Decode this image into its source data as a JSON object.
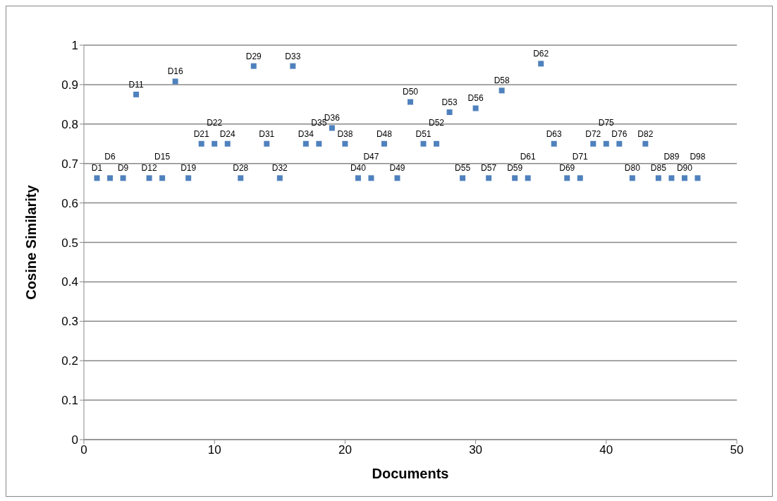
{
  "chart_data": {
    "type": "scatter",
    "xlabel": "Documents",
    "ylabel": "Cosine Similarity",
    "marker": "square",
    "grid": "y",
    "xlim": [
      0,
      50
    ],
    "xticks": [
      0,
      10,
      20,
      30,
      40,
      50
    ],
    "ylim": [
      0,
      1
    ],
    "yticks": [
      0,
      0.1,
      0.2,
      0.3,
      0.4,
      0.5,
      0.6,
      0.7,
      0.8,
      0.9,
      1
    ],
    "x": [
      1,
      2,
      3,
      4,
      5,
      6,
      7,
      8,
      9,
      10,
      11,
      12,
      13,
      14,
      15,
      16,
      17,
      18,
      19,
      20,
      21,
      22,
      23,
      24,
      25,
      26,
      27,
      28,
      29,
      30,
      31,
      32,
      33,
      34,
      35,
      36,
      37,
      38,
      39,
      40,
      41,
      42,
      43,
      44,
      45,
      46,
      47
    ],
    "series": [
      {
        "color": "#4f81bd",
        "values": [
          0.663,
          0.663,
          0.663,
          0.875,
          0.663,
          0.663,
          0.908,
          0.663,
          0.75,
          0.75,
          0.75,
          0.663,
          0.947,
          0.75,
          0.663,
          0.947,
          0.75,
          0.75,
          0.79,
          0.75,
          0.663,
          0.663,
          0.75,
          0.663,
          0.856,
          0.75,
          0.75,
          0.83,
          0.663,
          0.84,
          0.663,
          0.885,
          0.663,
          0.663,
          0.953,
          0.75,
          0.663,
          0.663,
          0.75,
          0.75,
          0.75,
          0.663,
          0.75,
          0.663,
          0.663,
          0.663,
          0.663
        ]
      }
    ],
    "annotations": [
      {
        "text": "D1",
        "x": 1,
        "y": 0.663
      },
      {
        "text": "D6",
        "x": 2,
        "y": 0.663
      },
      {
        "text": "D9",
        "x": 3,
        "y": 0.663
      },
      {
        "text": "D11",
        "x": 4,
        "y": 0.875
      },
      {
        "text": "D12",
        "x": 5,
        "y": 0.663
      },
      {
        "text": "D15",
        "x": 6,
        "y": 0.663
      },
      {
        "text": "D16",
        "x": 7,
        "y": 0.908
      },
      {
        "text": "D19",
        "x": 8,
        "y": 0.663
      },
      {
        "text": "D21",
        "x": 9,
        "y": 0.75
      },
      {
        "text": "D22",
        "x": 10,
        "y": 0.75
      },
      {
        "text": "D24",
        "x": 11,
        "y": 0.75
      },
      {
        "text": "D28",
        "x": 12,
        "y": 0.663
      },
      {
        "text": "D29",
        "x": 13,
        "y": 0.947
      },
      {
        "text": "D31",
        "x": 14,
        "y": 0.75
      },
      {
        "text": "D32",
        "x": 15,
        "y": 0.663
      },
      {
        "text": "D33",
        "x": 16,
        "y": 0.947
      },
      {
        "text": "D34",
        "x": 17,
        "y": 0.75
      },
      {
        "text": "D35",
        "x": 18,
        "y": 0.75
      },
      {
        "text": "D36",
        "x": 19,
        "y": 0.79
      },
      {
        "text": "D38",
        "x": 20,
        "y": 0.75
      },
      {
        "text": "D40",
        "x": 21,
        "y": 0.663
      },
      {
        "text": "D47",
        "x": 22,
        "y": 0.663
      },
      {
        "text": "D48",
        "x": 23,
        "y": 0.75
      },
      {
        "text": "D49",
        "x": 24,
        "y": 0.663
      },
      {
        "text": "D50",
        "x": 25,
        "y": 0.856
      },
      {
        "text": "D51",
        "x": 26,
        "y": 0.75
      },
      {
        "text": "D52",
        "x": 27,
        "y": 0.75
      },
      {
        "text": "D53",
        "x": 28,
        "y": 0.83
      },
      {
        "text": "D55",
        "x": 29,
        "y": 0.663
      },
      {
        "text": "D56",
        "x": 30,
        "y": 0.84
      },
      {
        "text": "D57",
        "x": 31,
        "y": 0.663
      },
      {
        "text": "D58",
        "x": 32,
        "y": 0.885
      },
      {
        "text": "D59",
        "x": 33,
        "y": 0.663
      },
      {
        "text": "D61",
        "x": 34,
        "y": 0.663
      },
      {
        "text": "D62",
        "x": 35,
        "y": 0.953
      },
      {
        "text": "D63",
        "x": 36,
        "y": 0.75
      },
      {
        "text": "D69",
        "x": 37,
        "y": 0.663
      },
      {
        "text": "D71",
        "x": 38,
        "y": 0.663
      },
      {
        "text": "D72",
        "x": 39,
        "y": 0.75
      },
      {
        "text": "D75",
        "x": 40,
        "y": 0.75
      },
      {
        "text": "D76",
        "x": 41,
        "y": 0.75
      },
      {
        "text": "D80",
        "x": 42,
        "y": 0.663
      },
      {
        "text": "D82",
        "x": 43,
        "y": 0.75
      },
      {
        "text": "D85",
        "x": 44,
        "y": 0.663
      },
      {
        "text": "D89",
        "x": 45,
        "y": 0.663
      },
      {
        "text": "D90",
        "x": 46,
        "y": 0.663
      },
      {
        "text": "D98",
        "x": 47,
        "y": 0.663
      }
    ]
  }
}
